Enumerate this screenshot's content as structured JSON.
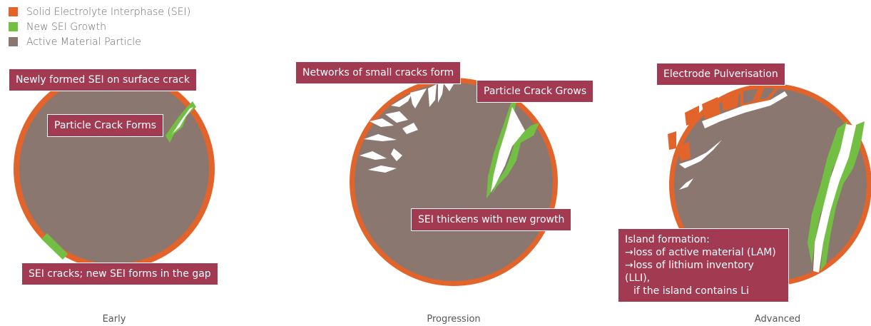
{
  "colors": {
    "sei": "#e2642b",
    "new_sei": "#72bf44",
    "active_material": "#8a7770",
    "callout_bg": "#a23a52",
    "crack": "#ffffff"
  },
  "legend": [
    {
      "label": "Solid Electrolyte Interphase (SEI)",
      "color": "#e2642b"
    },
    {
      "label": "New SEI Growth",
      "color": "#72bf44"
    },
    {
      "label": "Active Material Particle",
      "color": "#8a7770"
    }
  ],
  "panels": {
    "early": {
      "caption": "Early",
      "callouts": {
        "new_sei_crack": "Newly formed SEI on surface crack",
        "crack_forms": "Particle Crack Forms",
        "sei_cracks": "SEI cracks; new SEI forms in the gap"
      }
    },
    "progression": {
      "caption": "Progression",
      "callouts": {
        "networks": "Networks of small cracks form",
        "crack_grows": "Particle Crack Grows",
        "sei_thickens": "SEI thickens with new growth"
      }
    },
    "advanced": {
      "caption": "Advanced",
      "callouts": {
        "pulverisation": "Electrode Pulverisation",
        "island_lines": [
          "Island formation:",
          "→loss of active material (LAM)",
          "→loss of lithium inventory (LLI),",
          "  if the island contains Li"
        ]
      }
    }
  }
}
